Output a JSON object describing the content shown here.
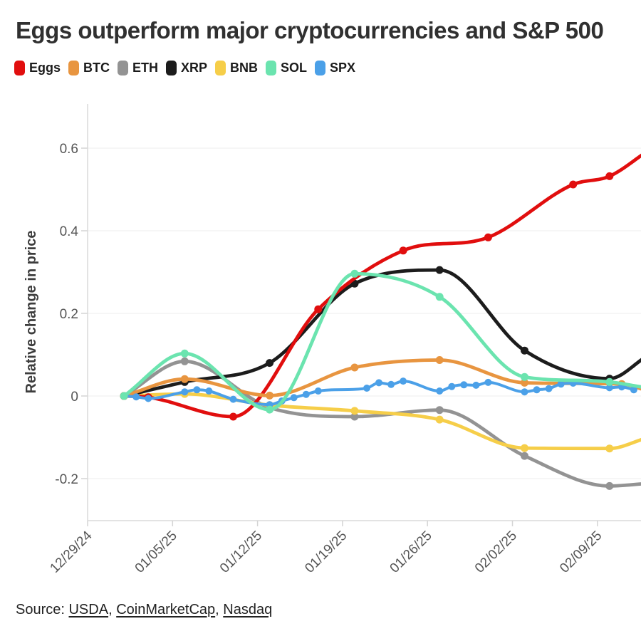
{
  "title": "Eggs outperform major cryptocurrencies and S&P 500",
  "source": {
    "prefix": "Source: ",
    "links": [
      "USDA",
      "CoinMarketCap",
      "Nasdaq"
    ],
    "separator": ", "
  },
  "axes": {
    "y_label": "Relative change in price",
    "y_ticks": [
      "0.6",
      "0.4",
      "0.2",
      "0",
      "-0.2"
    ],
    "y_tick_values": [
      0.6,
      0.4,
      0.2,
      0,
      -0.2
    ],
    "x_ticks": [
      "12/29/24",
      "01/05/25",
      "01/12/25",
      "01/19/25",
      "01/26/25",
      "02/02/25",
      "02/09/25"
    ]
  },
  "chart_data": {
    "type": "line",
    "title": "Eggs outperform major cryptocurrencies and S&P 500",
    "xlabel": "",
    "ylabel": "Relative change in price",
    "ylim": [
      -0.3,
      0.7
    ],
    "x_range": [
      "12/29/24",
      "02/13/25"
    ],
    "grid": "horizontal",
    "legend_position": "top-left",
    "draw_order": [
      "ETH",
      "BNB",
      "XRP",
      "Eggs",
      "BTC",
      "SPX",
      "SOL"
    ],
    "series": [
      {
        "name": "Eggs",
        "color": "#e10e0e",
        "points": [
          [
            "01/01/25",
            0
          ],
          [
            "01/03/25",
            -0.003
          ],
          [
            "01/10/25",
            -0.05
          ],
          [
            "01/17/25",
            0.21
          ],
          [
            "01/24/25",
            0.352
          ],
          [
            "01/31/25",
            0.384
          ],
          [
            "02/07/25",
            0.512
          ],
          [
            "02/10/25",
            0.532
          ],
          [
            "02/13/25",
            0.59
          ]
        ]
      },
      {
        "name": "BTC",
        "color": "#e89540",
        "points": [
          [
            "01/01/25",
            0
          ],
          [
            "01/06/25",
            0.041
          ],
          [
            "01/13/25",
            0.001
          ],
          [
            "01/20/25",
            0.069
          ],
          [
            "01/27/25",
            0.087
          ],
          [
            "02/03/25",
            0.032
          ],
          [
            "02/11/25",
            0.029
          ],
          [
            "02/13/25",
            0.014
          ]
        ]
      },
      {
        "name": "ETH",
        "color": "#939393",
        "points": [
          [
            "01/01/25",
            0
          ],
          [
            "01/06/25",
            0.084
          ],
          [
            "01/13/25",
            -0.028
          ],
          [
            "01/20/25",
            -0.05
          ],
          [
            "01/27/25",
            -0.034
          ],
          [
            "02/03/25",
            -0.145
          ],
          [
            "02/10/25",
            -0.218
          ],
          [
            "02/13/25",
            -0.212
          ]
        ]
      },
      {
        "name": "XRP",
        "color": "#1c1c1c",
        "points": [
          [
            "01/01/25",
            0
          ],
          [
            "01/06/25",
            0.034
          ],
          [
            "01/13/25",
            0.08
          ],
          [
            "01/20/25",
            0.272
          ],
          [
            "01/27/25",
            0.305
          ],
          [
            "02/03/25",
            0.11
          ],
          [
            "02/10/25",
            0.042
          ],
          [
            "02/13/25",
            0.095
          ]
        ]
      },
      {
        "name": "BNB",
        "color": "#f6ce49",
        "points": [
          [
            "01/01/25",
            0
          ],
          [
            "01/06/25",
            0.005
          ],
          [
            "01/13/25",
            -0.022
          ],
          [
            "01/20/25",
            -0.036
          ],
          [
            "01/27/25",
            -0.057
          ],
          [
            "02/03/25",
            -0.126
          ],
          [
            "02/10/25",
            -0.127
          ],
          [
            "02/13/25",
            -0.102
          ]
        ]
      },
      {
        "name": "SOL",
        "color": "#6be4af",
        "points": [
          [
            "01/01/25",
            0
          ],
          [
            "01/06/25",
            0.103
          ],
          [
            "01/13/25",
            -0.033
          ],
          [
            "01/20/25",
            0.296
          ],
          [
            "01/27/25",
            0.24
          ],
          [
            "02/03/25",
            0.046
          ],
          [
            "02/10/25",
            0.034
          ],
          [
            "02/13/25",
            0.02
          ]
        ]
      },
      {
        "name": "SPX",
        "color": "#4ba0e8",
        "points": [
          [
            "01/01/25",
            0
          ],
          [
            "01/02/25",
            -0.002
          ],
          [
            "01/03/25",
            -0.006
          ],
          [
            "01/06/25",
            0.01
          ],
          [
            "01/07/25",
            0.015
          ],
          [
            "01/08/25",
            0.012
          ],
          [
            "01/10/25",
            -0.008
          ],
          [
            "01/13/25",
            -0.021
          ],
          [
            "01/14/25",
            -0.012
          ],
          [
            "01/15/25",
            -0.004
          ],
          [
            "01/16/25",
            0.004
          ],
          [
            "01/17/25",
            0.012
          ],
          [
            "01/21/25",
            0.019
          ],
          [
            "01/22/25",
            0.032
          ],
          [
            "01/23/25",
            0.028
          ],
          [
            "01/24/25",
            0.036
          ],
          [
            "01/27/25",
            0.012
          ],
          [
            "01/28/25",
            0.023
          ],
          [
            "01/29/25",
            0.027
          ],
          [
            "01/30/25",
            0.026
          ],
          [
            "01/31/25",
            0.033
          ],
          [
            "02/03/25",
            0.01
          ],
          [
            "02/04/25",
            0.015
          ],
          [
            "02/05/25",
            0.018
          ],
          [
            "02/06/25",
            0.029
          ],
          [
            "02/07/25",
            0.031
          ],
          [
            "02/10/25",
            0.02
          ],
          [
            "02/11/25",
            0.022
          ],
          [
            "02/12/25",
            0.015
          ]
        ]
      }
    ]
  }
}
